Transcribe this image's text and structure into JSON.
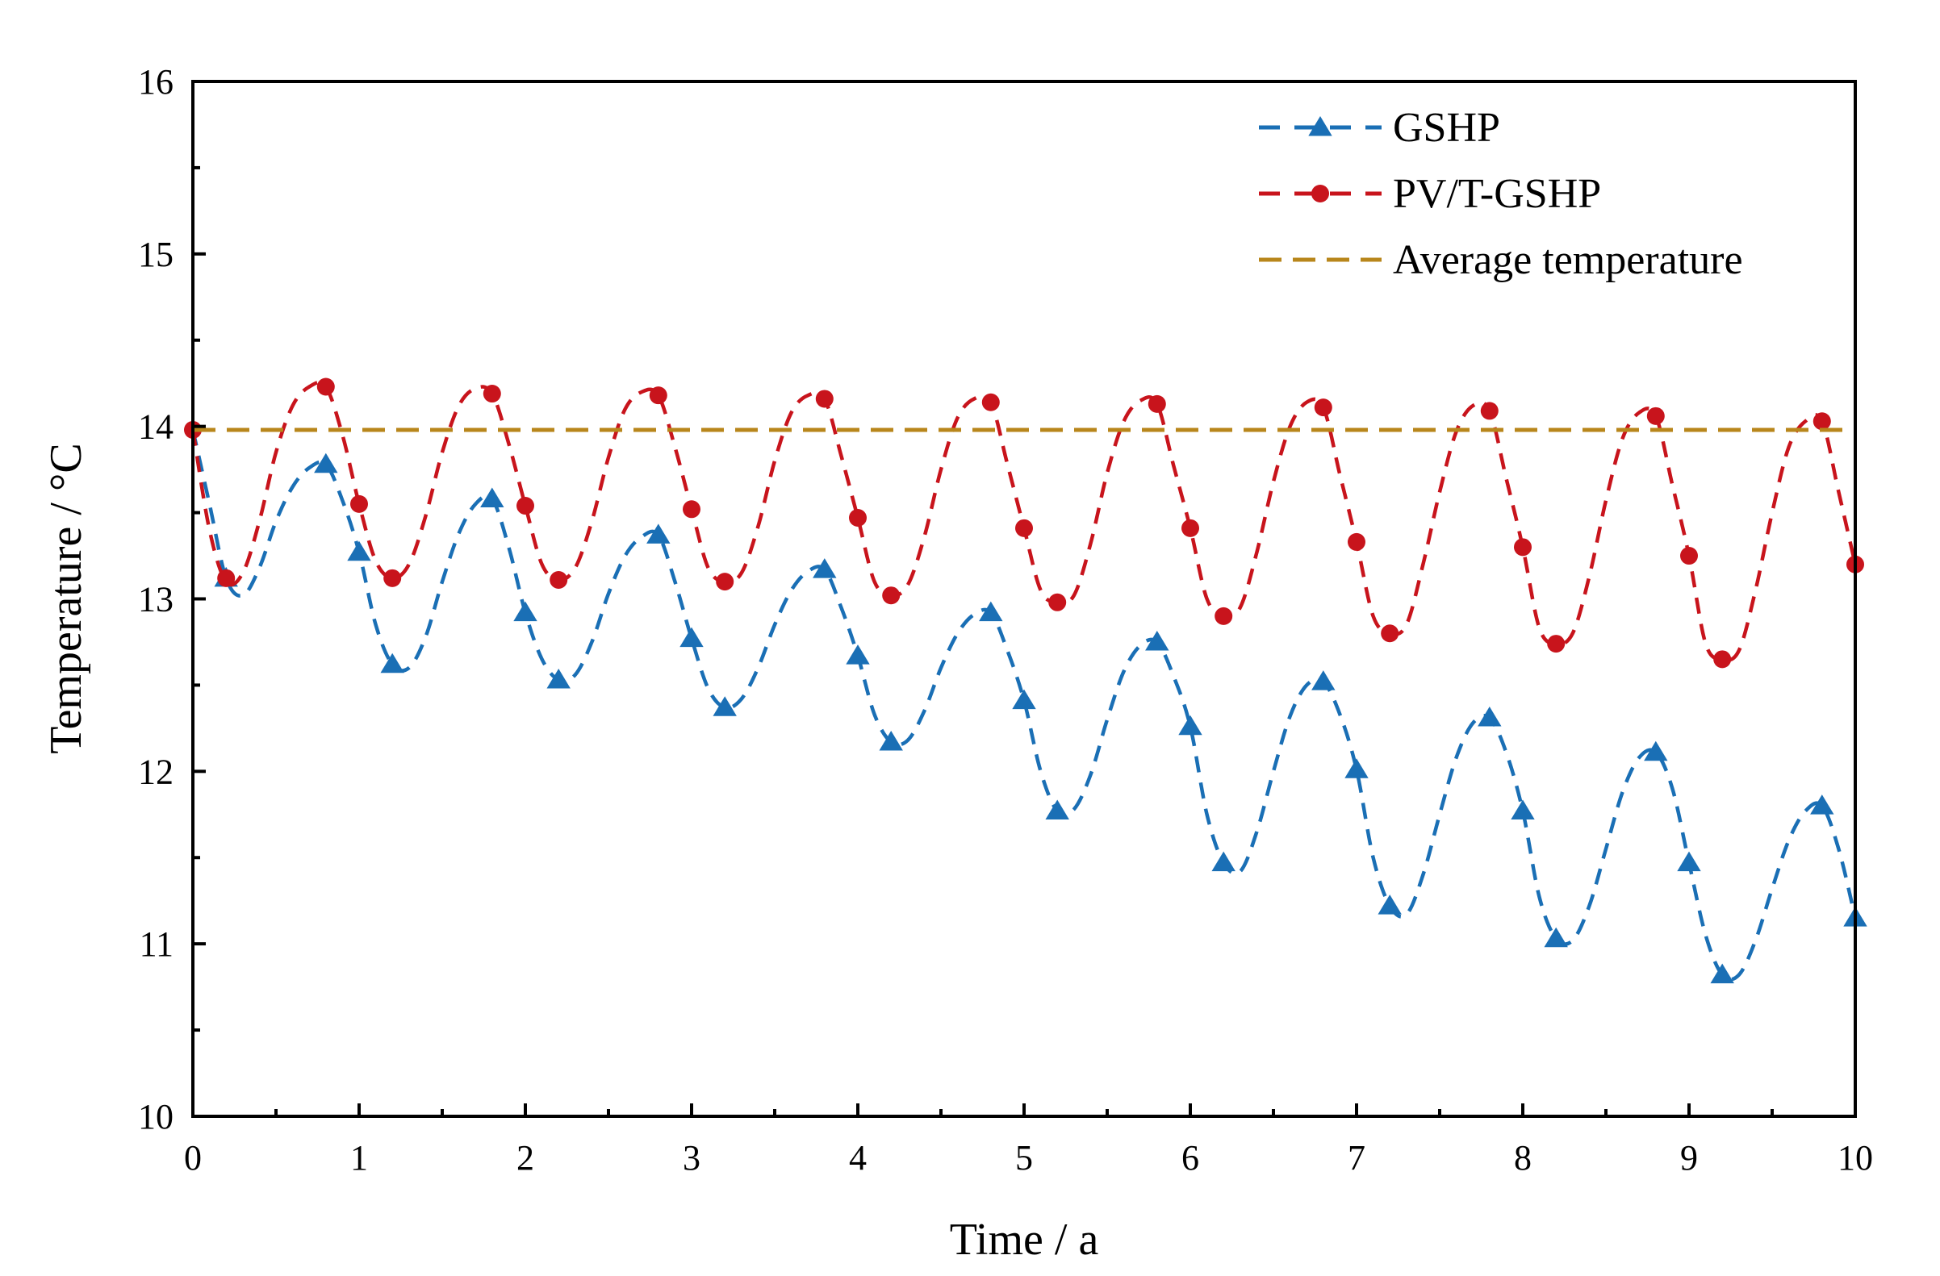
{
  "chart_data": {
    "type": "line",
    "title": "",
    "xlabel": "Time / a",
    "ylabel": "Temperature / °C",
    "xlim": [
      0,
      10
    ],
    "ylim": [
      10,
      16
    ],
    "xticks": [
      0,
      1,
      2,
      3,
      4,
      5,
      6,
      7,
      8,
      9,
      10
    ],
    "xtick_labels": [
      "0",
      "1",
      "2",
      "3",
      "4",
      "5",
      "6",
      "7",
      "8",
      "9",
      "10"
    ],
    "yticks": [
      10,
      11,
      12,
      13,
      14,
      15,
      16
    ],
    "ytick_labels": [
      "10",
      "11",
      "12",
      "13",
      "14",
      "15",
      "16"
    ],
    "grid": false,
    "legend_position": "top-right",
    "series": [
      {
        "name": "GSHP",
        "color": "#1a6fb5",
        "line_style": "dashed",
        "marker": "triangle",
        "x": [
          0.2,
          0.8,
          1.0,
          1.2,
          1.8,
          2.0,
          2.2,
          2.8,
          3.0,
          3.2,
          3.8,
          4.0,
          4.2,
          4.8,
          5.0,
          5.2,
          5.8,
          6.0,
          6.2,
          6.8,
          7.0,
          7.2,
          7.8,
          8.0,
          8.2,
          8.8,
          9.0,
          9.2,
          9.8,
          10.0
        ],
        "y": [
          13.12,
          13.78,
          13.27,
          12.62,
          13.58,
          12.92,
          12.53,
          13.37,
          12.77,
          12.37,
          13.17,
          12.67,
          12.17,
          12.92,
          12.41,
          11.77,
          12.75,
          12.26,
          11.47,
          12.52,
          12.01,
          11.22,
          12.31,
          11.77,
          11.03,
          12.11,
          11.47,
          10.82,
          11.8,
          11.15
        ],
        "curve": {
          "x": [
            0.0,
            0.1,
            0.2,
            0.3,
            0.4,
            0.5,
            0.6,
            0.7,
            0.8,
            0.9,
            1.0,
            1.1,
            1.2,
            1.3,
            1.4,
            1.5,
            1.6,
            1.7,
            1.8,
            1.9,
            2.0,
            2.1,
            2.2,
            2.3,
            2.4,
            2.5,
            2.6,
            2.7,
            2.8,
            2.9,
            3.0,
            3.1,
            3.2,
            3.3,
            3.4,
            3.5,
            3.6,
            3.7,
            3.8,
            3.9,
            4.0,
            4.1,
            4.2,
            4.3,
            4.4,
            4.5,
            4.6,
            4.7,
            4.8,
            4.9,
            5.0,
            5.1,
            5.2,
            5.3,
            5.4,
            5.5,
            5.6,
            5.7,
            5.8,
            5.9,
            6.0,
            6.1,
            6.2,
            6.3,
            6.4,
            6.5,
            6.6,
            6.7,
            6.8,
            6.9,
            7.0,
            7.1,
            7.2,
            7.3,
            7.4,
            7.5,
            7.6,
            7.7,
            7.8,
            7.9,
            8.0,
            8.1,
            8.2,
            8.3,
            8.4,
            8.5,
            8.6,
            8.7,
            8.8,
            8.9,
            9.0,
            9.1,
            9.2,
            9.3,
            9.4,
            9.5,
            9.6,
            9.7,
            9.8,
            9.9,
            10.0
          ],
          "y": [
            13.98,
            13.55,
            13.12,
            13.02,
            13.18,
            13.45,
            13.65,
            13.76,
            13.78,
            13.57,
            13.27,
            12.85,
            12.62,
            12.6,
            12.78,
            13.1,
            13.38,
            13.55,
            13.58,
            13.3,
            12.92,
            12.65,
            12.53,
            12.56,
            12.75,
            13.03,
            13.25,
            13.36,
            13.37,
            13.1,
            12.77,
            12.48,
            12.37,
            12.42,
            12.6,
            12.85,
            13.05,
            13.16,
            13.17,
            12.95,
            12.67,
            12.33,
            12.17,
            12.18,
            12.35,
            12.6,
            12.8,
            12.91,
            12.92,
            12.7,
            12.41,
            12.0,
            11.77,
            11.78,
            11.98,
            12.3,
            12.58,
            12.73,
            12.75,
            12.55,
            12.26,
            11.75,
            11.47,
            11.42,
            11.65,
            12.0,
            12.32,
            12.5,
            12.52,
            12.33,
            12.01,
            11.5,
            11.22,
            11.17,
            11.4,
            11.75,
            12.08,
            12.28,
            12.31,
            12.11,
            11.77,
            11.27,
            11.03,
            11.02,
            11.22,
            11.55,
            11.88,
            12.08,
            12.11,
            11.9,
            11.47,
            11.05,
            10.82,
            10.82,
            11.02,
            11.32,
            11.6,
            11.77,
            11.8,
            11.55,
            11.15
          ]
        }
      },
      {
        "name": "PV/T-GSHP",
        "color": "#c8141c",
        "line_style": "dashed",
        "marker": "circle",
        "x": [
          0.0,
          0.2,
          0.8,
          1.0,
          1.2,
          1.8,
          2.0,
          2.2,
          2.8,
          3.0,
          3.2,
          3.8,
          4.0,
          4.2,
          4.8,
          5.0,
          5.2,
          5.8,
          6.0,
          6.2,
          6.8,
          7.0,
          7.2,
          7.8,
          8.0,
          8.2,
          8.8,
          9.0,
          9.2,
          9.8,
          10.0
        ],
        "y": [
          13.98,
          13.12,
          14.23,
          13.55,
          13.12,
          14.19,
          13.54,
          13.11,
          14.18,
          13.52,
          13.1,
          14.16,
          13.47,
          13.02,
          14.14,
          13.41,
          12.98,
          14.13,
          13.41,
          12.9,
          14.11,
          13.33,
          12.8,
          14.09,
          13.3,
          12.74,
          14.06,
          13.25,
          12.65,
          14.03,
          13.2
        ],
        "curve": {
          "x": [
            0.0,
            0.1,
            0.2,
            0.3,
            0.4,
            0.5,
            0.6,
            0.7,
            0.8,
            0.9,
            1.0,
            1.1,
            1.2,
            1.3,
            1.4,
            1.5,
            1.6,
            1.7,
            1.8,
            1.9,
            2.0,
            2.1,
            2.2,
            2.3,
            2.4,
            2.5,
            2.6,
            2.7,
            2.8,
            2.9,
            3.0,
            3.1,
            3.2,
            3.3,
            3.4,
            3.5,
            3.6,
            3.7,
            3.8,
            3.9,
            4.0,
            4.1,
            4.2,
            4.3,
            4.4,
            4.5,
            4.6,
            4.7,
            4.8,
            4.9,
            5.0,
            5.1,
            5.2,
            5.3,
            5.4,
            5.5,
            5.6,
            5.7,
            5.8,
            5.9,
            6.0,
            6.1,
            6.2,
            6.3,
            6.4,
            6.5,
            6.6,
            6.7,
            6.8,
            6.9,
            7.0,
            7.1,
            7.2,
            7.3,
            7.4,
            7.5,
            7.6,
            7.7,
            7.8,
            7.9,
            8.0,
            8.1,
            8.2,
            8.3,
            8.4,
            8.5,
            8.6,
            8.7,
            8.8,
            8.9,
            9.0,
            9.1,
            9.2,
            9.3,
            9.4,
            9.5,
            9.6,
            9.7,
            9.8,
            9.9,
            10.0
          ],
          "y": [
            13.98,
            13.4,
            13.1,
            13.15,
            13.45,
            13.85,
            14.12,
            14.23,
            14.23,
            13.95,
            13.55,
            13.22,
            13.12,
            13.2,
            13.48,
            13.85,
            14.12,
            14.22,
            14.19,
            13.9,
            13.54,
            13.2,
            13.11,
            13.18,
            13.45,
            13.82,
            14.1,
            14.2,
            14.18,
            13.88,
            13.52,
            13.18,
            13.1,
            13.15,
            13.42,
            13.8,
            14.08,
            14.18,
            14.16,
            13.83,
            13.47,
            13.1,
            13.02,
            13.08,
            13.36,
            13.75,
            14.05,
            14.16,
            14.14,
            13.78,
            13.41,
            13.05,
            12.98,
            13.02,
            13.32,
            13.73,
            14.03,
            14.15,
            14.13,
            13.77,
            13.41,
            13.0,
            12.9,
            12.95,
            13.27,
            13.68,
            14.0,
            14.14,
            14.11,
            13.72,
            13.33,
            12.9,
            12.8,
            12.85,
            13.2,
            13.62,
            13.97,
            14.12,
            14.09,
            13.7,
            13.3,
            12.83,
            12.74,
            12.8,
            13.13,
            13.57,
            13.93,
            14.08,
            14.06,
            13.66,
            13.25,
            12.74,
            12.65,
            12.7,
            13.05,
            13.5,
            13.88,
            14.03,
            14.03,
            13.62,
            13.2
          ]
        }
      },
      {
        "name": "Average temperature",
        "color": "#b8861b",
        "line_style": "dashed",
        "marker": "none",
        "x": [
          0,
          10
        ],
        "y": [
          13.98,
          13.98
        ]
      }
    ]
  }
}
